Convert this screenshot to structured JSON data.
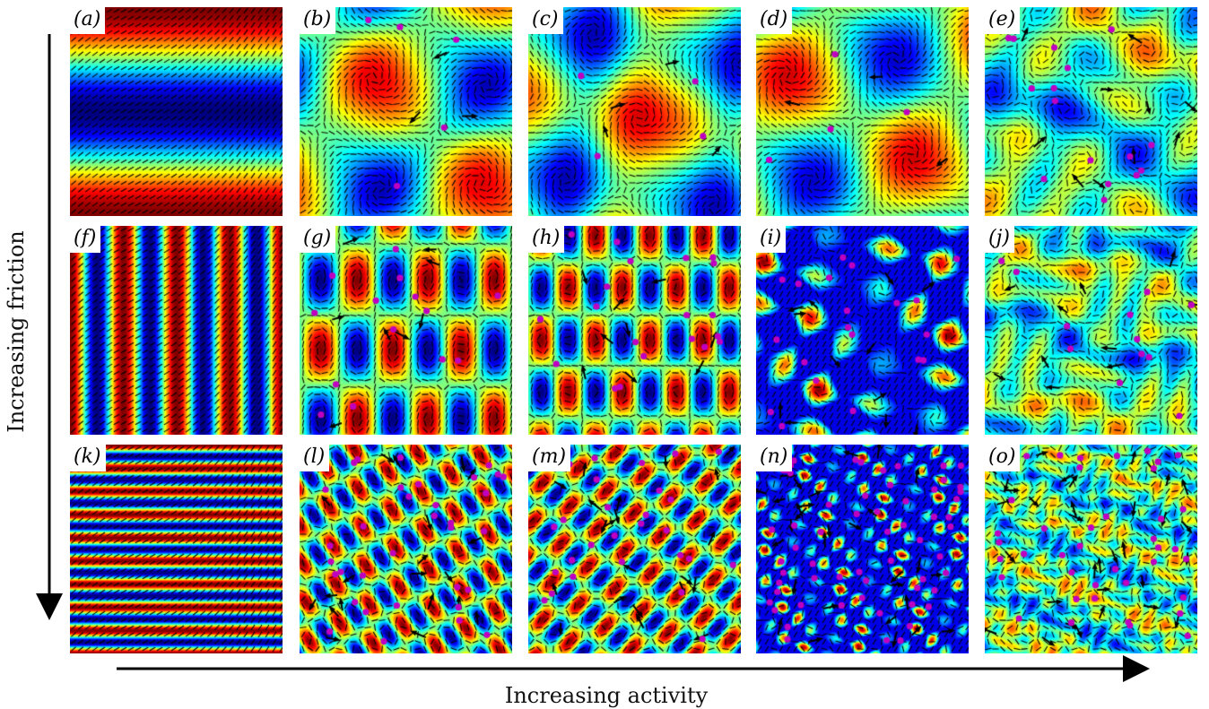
{
  "figure": {
    "x_axis_label": "Increasing activity",
    "y_axis_label": "Increasing friction",
    "marker_color": "#c000c0",
    "panels": [
      {
        "label": "(a)",
        "pattern": "h-stripes",
        "periods": 1,
        "rot": 0,
        "warp": 0,
        "spiral": 0,
        "seed": 1,
        "dots": 0,
        "arrows": 0
      },
      {
        "label": "(b)",
        "pattern": "vortex-field",
        "periods": 1,
        "rot": 0,
        "warp": 0.6,
        "spiral": 0.8,
        "seed": 2,
        "dots": 5,
        "arrows": 3
      },
      {
        "label": "(c)",
        "pattern": "vortex-field",
        "periods": 1,
        "rot": 0.6,
        "warp": 0.8,
        "spiral": 0.6,
        "seed": 3,
        "dots": 4,
        "arrows": 4
      },
      {
        "label": "(d)",
        "pattern": "vortex-field",
        "periods": 1,
        "rot": 0.2,
        "warp": 0.3,
        "spiral": 1.0,
        "seed": 4,
        "dots": 4,
        "arrows": 3
      },
      {
        "label": "(e)",
        "pattern": "turbulent",
        "periods": 2,
        "rot": 0.3,
        "warp": 0.6,
        "spiral": 0.5,
        "seed": 5,
        "dots": 16,
        "arrows": 10
      },
      {
        "label": "(f)",
        "pattern": "v-stripes",
        "periods": 4,
        "rot": 0,
        "warp": 0,
        "spiral": 0,
        "seed": 6,
        "dots": 0,
        "arrows": 0
      },
      {
        "label": "(g)",
        "pattern": "lattice",
        "periods": 3,
        "rot": 0,
        "warp": 0.4,
        "spiral": 0.3,
        "seed": 7,
        "dots": 14,
        "arrows": 8
      },
      {
        "label": "(h)",
        "pattern": "lattice",
        "periods": 4,
        "rot": 0,
        "warp": 0.2,
        "spiral": 0.2,
        "seed": 8,
        "dots": 20,
        "arrows": 10
      },
      {
        "label": "(i)",
        "pattern": "vortex-lattice",
        "periods": 3,
        "rot": 0.4,
        "warp": 1.0,
        "spiral": 0.9,
        "seed": 9,
        "dots": 22,
        "arrows": 12
      },
      {
        "label": "(j)",
        "pattern": "turbulent",
        "periods": 3,
        "rot": 0.5,
        "warp": 1.1,
        "spiral": 0.6,
        "seed": 10,
        "dots": 12,
        "arrows": 10
      },
      {
        "label": "(k)",
        "pattern": "h-stripes",
        "periods": 9,
        "rot": 0,
        "warp": 0,
        "spiral": 0,
        "seed": 11,
        "dots": 0,
        "arrows": 0
      },
      {
        "label": "(l)",
        "pattern": "lattice",
        "periods": 6,
        "rot": 0.55,
        "warp": 0.3,
        "spiral": 0.3,
        "seed": 12,
        "dots": 34,
        "arrows": 20
      },
      {
        "label": "(m)",
        "pattern": "lattice",
        "periods": 6,
        "rot": -0.7,
        "warp": 0.3,
        "spiral": 0.3,
        "seed": 13,
        "dots": 30,
        "arrows": 22
      },
      {
        "label": "(n)",
        "pattern": "vortex-lattice",
        "periods": 7,
        "rot": 0.3,
        "warp": 1.0,
        "spiral": 0.9,
        "seed": 14,
        "dots": 60,
        "arrows": 30
      },
      {
        "label": "(o)",
        "pattern": "turbulent",
        "periods": 6,
        "rot": 0.4,
        "warp": 1.3,
        "spiral": 0.7,
        "seed": 15,
        "dots": 40,
        "arrows": 34
      }
    ]
  }
}
